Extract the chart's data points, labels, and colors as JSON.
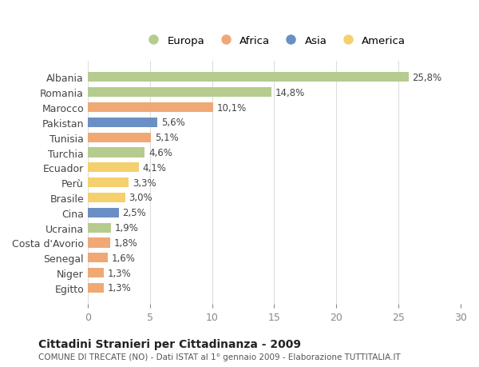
{
  "countries": [
    "Albania",
    "Romania",
    "Marocco",
    "Pakistan",
    "Tunisia",
    "Turchia",
    "Ecuador",
    "Perù",
    "Brasile",
    "Cina",
    "Ucraina",
    "Costa d'Avorio",
    "Senegal",
    "Niger",
    "Egitto"
  ],
  "values": [
    25.8,
    14.8,
    10.1,
    5.6,
    5.1,
    4.6,
    4.1,
    3.3,
    3.0,
    2.5,
    1.9,
    1.8,
    1.6,
    1.3,
    1.3
  ],
  "labels": [
    "25,8%",
    "14,8%",
    "10,1%",
    "5,6%",
    "5,1%",
    "4,6%",
    "4,1%",
    "3,3%",
    "3,0%",
    "2,5%",
    "1,9%",
    "1,8%",
    "1,6%",
    "1,3%",
    "1,3%"
  ],
  "continents": [
    "Europa",
    "Europa",
    "Africa",
    "Asia",
    "Africa",
    "Europa",
    "America",
    "America",
    "America",
    "Asia",
    "Europa",
    "Africa",
    "Africa",
    "Africa",
    "Africa"
  ],
  "colors": {
    "Europa": "#b5cc8e",
    "Africa": "#f0a875",
    "Asia": "#6a8fc4",
    "America": "#f5d06e"
  },
  "legend_order": [
    "Europa",
    "Africa",
    "Asia",
    "America"
  ],
  "xlim": [
    0,
    30
  ],
  "xticks": [
    0,
    5,
    10,
    15,
    20,
    25,
    30
  ],
  "title": "Cittadini Stranieri per Cittadinanza - 2009",
  "subtitle": "COMUNE DI TRECATE (NO) - Dati ISTAT al 1° gennaio 2009 - Elaborazione TUTTITALIA.IT",
  "bg_color": "#ffffff",
  "bar_height": 0.65,
  "grid_color": "#dddddd"
}
